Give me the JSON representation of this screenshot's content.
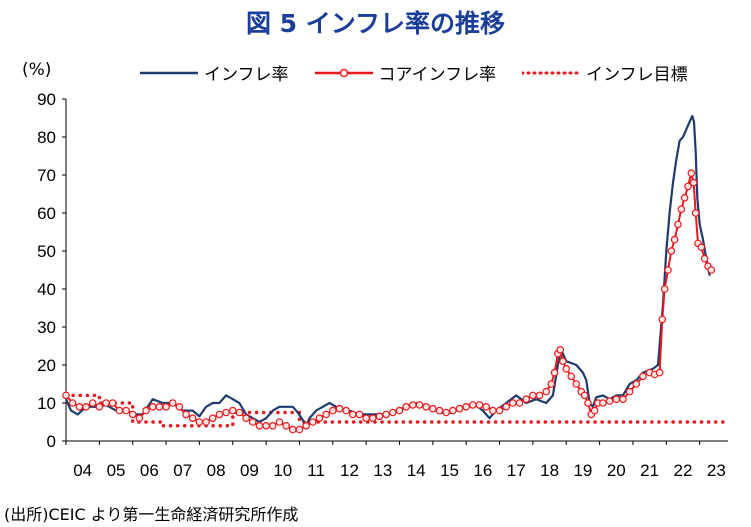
{
  "title": "図 5  インフレ率の推移",
  "unit_label": "(%)",
  "source": "(出所)CEIC より第一生命経済研究所作成",
  "chart_data": {
    "type": "line",
    "title": "図 5  インフレ率の推移",
    "ylabel": "(%)",
    "xlim": [
      2004.0,
      2023.85
    ],
    "ylim": [
      0,
      90
    ],
    "y_ticks": [
      "0",
      "10",
      "20",
      "30",
      "40",
      "50",
      "60",
      "70",
      "80",
      "90"
    ],
    "x_tick_labels": [
      "04",
      "05",
      "06",
      "07",
      "08",
      "09",
      "10",
      "11",
      "12",
      "13",
      "14",
      "15",
      "16",
      "17",
      "18",
      "19",
      "20",
      "21",
      "22",
      "23"
    ],
    "legend_placement": "top",
    "grid": false,
    "series": [
      {
        "name": "インフレ率",
        "color": "#1f3a6e",
        "style": "solid",
        "points": [
          [
            2004.0,
            11
          ],
          [
            2004.15,
            8
          ],
          [
            2004.35,
            7
          ],
          [
            2004.6,
            9
          ],
          [
            2004.9,
            9
          ],
          [
            2005.2,
            9.5
          ],
          [
            2005.5,
            8
          ],
          [
            2005.8,
            8
          ],
          [
            2006.1,
            7
          ],
          [
            2006.3,
            7
          ],
          [
            2006.6,
            11
          ],
          [
            2006.9,
            10
          ],
          [
            2007.2,
            10
          ],
          [
            2007.5,
            8
          ],
          [
            2007.8,
            8
          ],
          [
            2008.0,
            6.5
          ],
          [
            2008.2,
            9
          ],
          [
            2008.4,
            10
          ],
          [
            2008.6,
            10
          ],
          [
            2008.8,
            12
          ],
          [
            2009.0,
            11
          ],
          [
            2009.2,
            10
          ],
          [
            2009.4,
            7
          ],
          [
            2009.6,
            6
          ],
          [
            2009.8,
            5
          ],
          [
            2010.0,
            6
          ],
          [
            2010.2,
            8
          ],
          [
            2010.4,
            9
          ],
          [
            2010.6,
            9
          ],
          [
            2010.8,
            9
          ],
          [
            2010.95,
            7.5
          ],
          [
            2011.1,
            5.5
          ],
          [
            2011.2,
            4
          ],
          [
            2011.3,
            6
          ],
          [
            2011.5,
            8
          ],
          [
            2011.7,
            9
          ],
          [
            2011.9,
            10
          ],
          [
            2012.2,
            8.5
          ],
          [
            2012.5,
            8
          ],
          [
            2012.8,
            7
          ],
          [
            2013.0,
            7
          ],
          [
            2013.3,
            7
          ],
          [
            2013.6,
            7
          ],
          [
            2013.9,
            8
          ],
          [
            2014.2,
            9
          ],
          [
            2014.5,
            10
          ],
          [
            2014.8,
            9
          ],
          [
            2015.1,
            8
          ],
          [
            2015.4,
            7
          ],
          [
            2015.7,
            8
          ],
          [
            2016.0,
            9
          ],
          [
            2016.2,
            10
          ],
          [
            2016.5,
            8
          ],
          [
            2016.7,
            6
          ],
          [
            2016.9,
            8
          ],
          [
            2017.2,
            10
          ],
          [
            2017.5,
            12
          ],
          [
            2017.8,
            10
          ],
          [
            2018.1,
            11
          ],
          [
            2018.4,
            10
          ],
          [
            2018.6,
            12
          ],
          [
            2018.75,
            20
          ],
          [
            2018.85,
            24
          ],
          [
            2019.0,
            21
          ],
          [
            2019.3,
            20
          ],
          [
            2019.5,
            18
          ],
          [
            2019.6,
            16
          ],
          [
            2019.7,
            10
          ],
          [
            2019.8,
            9
          ],
          [
            2019.9,
            11.5
          ],
          [
            2020.1,
            12
          ],
          [
            2020.3,
            11
          ],
          [
            2020.5,
            12
          ],
          [
            2020.7,
            12
          ],
          [
            2020.9,
            15
          ],
          [
            2021.1,
            16
          ],
          [
            2021.3,
            18
          ],
          [
            2021.6,
            19
          ],
          [
            2021.75,
            20
          ],
          [
            2021.9,
            36
          ],
          [
            2022.0,
            50
          ],
          [
            2022.1,
            60
          ],
          [
            2022.2,
            68
          ],
          [
            2022.3,
            74
          ],
          [
            2022.4,
            79
          ],
          [
            2022.5,
            80
          ],
          [
            2022.6,
            82
          ],
          [
            2022.7,
            84
          ],
          [
            2022.78,
            85.5
          ],
          [
            2022.83,
            84
          ],
          [
            2022.88,
            76
          ],
          [
            2022.93,
            64
          ],
          [
            2023.0,
            57
          ],
          [
            2023.1,
            53
          ],
          [
            2023.2,
            48
          ],
          [
            2023.3,
            43.5
          ]
        ]
      },
      {
        "name": "コアインフレ率",
        "color": "#e8191c",
        "style": "solid-with-markers",
        "points": [
          [
            2004.0,
            12
          ],
          [
            2004.2,
            10
          ],
          [
            2004.4,
            9
          ],
          [
            2004.6,
            9
          ],
          [
            2004.8,
            10
          ],
          [
            2005.0,
            9
          ],
          [
            2005.2,
            10
          ],
          [
            2005.4,
            10
          ],
          [
            2005.6,
            8
          ],
          [
            2005.8,
            8
          ],
          [
            2006.0,
            7
          ],
          [
            2006.2,
            6
          ],
          [
            2006.4,
            8
          ],
          [
            2006.6,
            9
          ],
          [
            2006.8,
            9
          ],
          [
            2007.0,
            9
          ],
          [
            2007.2,
            10
          ],
          [
            2007.4,
            9
          ],
          [
            2007.6,
            7
          ],
          [
            2007.8,
            6
          ],
          [
            2008.0,
            5
          ],
          [
            2008.2,
            5
          ],
          [
            2008.4,
            6
          ],
          [
            2008.6,
            7
          ],
          [
            2008.8,
            7.5
          ],
          [
            2009.0,
            8
          ],
          [
            2009.2,
            7.5
          ],
          [
            2009.4,
            6
          ],
          [
            2009.6,
            5
          ],
          [
            2009.8,
            4
          ],
          [
            2010.0,
            4
          ],
          [
            2010.2,
            4
          ],
          [
            2010.4,
            5
          ],
          [
            2010.6,
            4
          ],
          [
            2010.8,
            3
          ],
          [
            2011.0,
            3
          ],
          [
            2011.2,
            4
          ],
          [
            2011.4,
            5
          ],
          [
            2011.6,
            6
          ],
          [
            2011.8,
            7
          ],
          [
            2012.0,
            8
          ],
          [
            2012.2,
            8.5
          ],
          [
            2012.4,
            8
          ],
          [
            2012.6,
            7
          ],
          [
            2012.8,
            7
          ],
          [
            2013.0,
            6
          ],
          [
            2013.2,
            6
          ],
          [
            2013.4,
            6.5
          ],
          [
            2013.6,
            7
          ],
          [
            2013.8,
            7.5
          ],
          [
            2014.0,
            8
          ],
          [
            2014.2,
            9
          ],
          [
            2014.4,
            9.5
          ],
          [
            2014.6,
            9.5
          ],
          [
            2014.8,
            9
          ],
          [
            2015.0,
            8.5
          ],
          [
            2015.2,
            8
          ],
          [
            2015.4,
            7.5
          ],
          [
            2015.6,
            8
          ],
          [
            2015.8,
            8.5
          ],
          [
            2016.0,
            9
          ],
          [
            2016.2,
            9.5
          ],
          [
            2016.4,
            9.5
          ],
          [
            2016.6,
            9
          ],
          [
            2016.8,
            8
          ],
          [
            2017.0,
            8
          ],
          [
            2017.2,
            9
          ],
          [
            2017.4,
            10
          ],
          [
            2017.6,
            10
          ],
          [
            2017.8,
            11
          ],
          [
            2018.0,
            12
          ],
          [
            2018.2,
            12
          ],
          [
            2018.4,
            13
          ],
          [
            2018.55,
            15
          ],
          [
            2018.65,
            18
          ],
          [
            2018.75,
            23
          ],
          [
            2018.82,
            24
          ],
          [
            2018.9,
            21
          ],
          [
            2019.0,
            19
          ],
          [
            2019.15,
            17
          ],
          [
            2019.3,
            15
          ],
          [
            2019.45,
            13
          ],
          [
            2019.55,
            12
          ],
          [
            2019.65,
            10
          ],
          [
            2019.75,
            7
          ],
          [
            2019.85,
            8
          ],
          [
            2019.95,
            10
          ],
          [
            2020.1,
            10
          ],
          [
            2020.3,
            10.5
          ],
          [
            2020.5,
            11
          ],
          [
            2020.7,
            11
          ],
          [
            2020.9,
            13
          ],
          [
            2021.1,
            15
          ],
          [
            2021.3,
            17
          ],
          [
            2021.5,
            18
          ],
          [
            2021.65,
            17.5
          ],
          [
            2021.8,
            18
          ],
          [
            2021.88,
            32
          ],
          [
            2021.95,
            40
          ],
          [
            2022.05,
            45
          ],
          [
            2022.15,
            50
          ],
          [
            2022.25,
            53
          ],
          [
            2022.35,
            57
          ],
          [
            2022.45,
            61
          ],
          [
            2022.55,
            64
          ],
          [
            2022.65,
            67
          ],
          [
            2022.75,
            70.5
          ],
          [
            2022.82,
            68
          ],
          [
            2022.88,
            60
          ],
          [
            2022.95,
            52
          ],
          [
            2023.05,
            51
          ],
          [
            2023.15,
            48
          ],
          [
            2023.25,
            46
          ],
          [
            2023.35,
            45
          ]
        ]
      },
      {
        "name": "インフレ目標",
        "color": "#e8191c",
        "style": "dotted",
        "points": [
          [
            2004.0,
            12
          ],
          [
            2005.0,
            12
          ],
          [
            2005.0,
            10
          ],
          [
            2006.0,
            10
          ],
          [
            2006.0,
            5
          ],
          [
            2006.9,
            5
          ],
          [
            2006.9,
            4
          ],
          [
            2009.0,
            4
          ],
          [
            2009.0,
            7.5
          ],
          [
            2011.0,
            7.5
          ],
          [
            2011.0,
            5
          ],
          [
            2023.85,
            5
          ]
        ]
      }
    ]
  }
}
